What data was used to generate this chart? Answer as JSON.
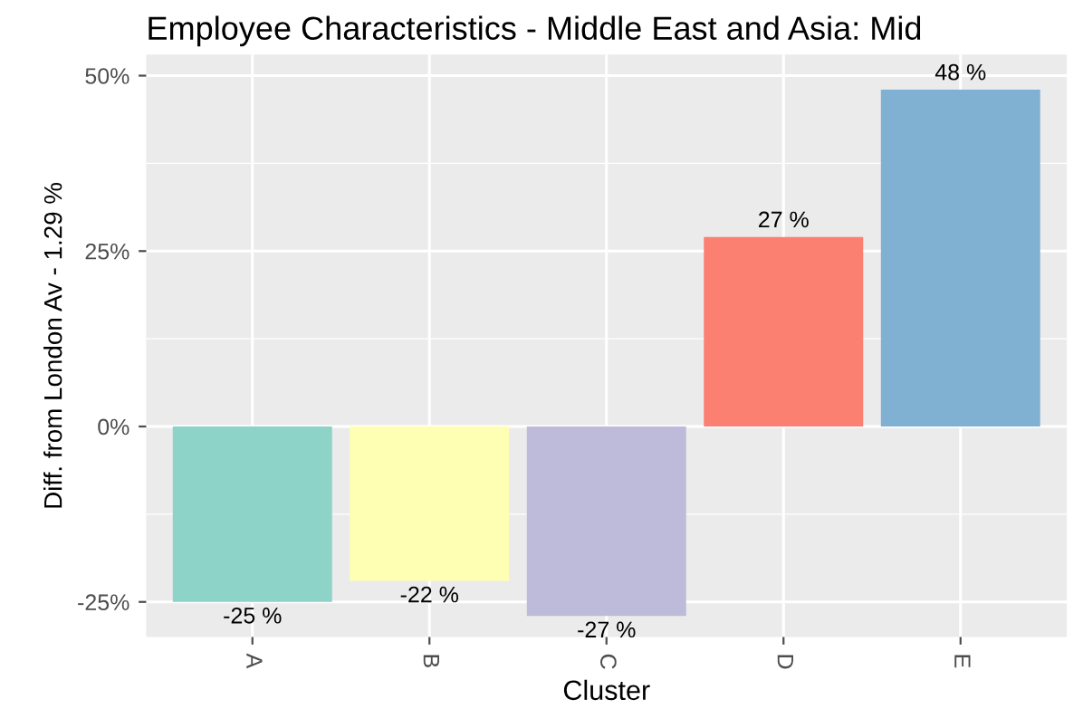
{
  "chart_data": {
    "type": "bar",
    "title": "Employee Characteristics - Middle East and Asia: Mid",
    "xlabel": "Cluster",
    "ylabel": "Diff. from London Av - 1.29 %",
    "categories": [
      "A",
      "B",
      "C",
      "D",
      "E"
    ],
    "values": [
      -25,
      -22,
      -27,
      27,
      48
    ],
    "value_labels": [
      "-25 %",
      "-22 %",
      "-27 %",
      "27 %",
      "48 %"
    ],
    "colors": [
      "#8dd3c7",
      "#ffffb3",
      "#bebada",
      "#fb8072",
      "#80b1d3"
    ],
    "ylim": [
      -30,
      53
    ],
    "yticks": [
      {
        "value": -25,
        "label": "-25%"
      },
      {
        "value": 0,
        "label": "0%"
      },
      {
        "value": 25,
        "label": "25%"
      },
      {
        "value": 50,
        "label": "50%"
      }
    ],
    "grid": true
  }
}
